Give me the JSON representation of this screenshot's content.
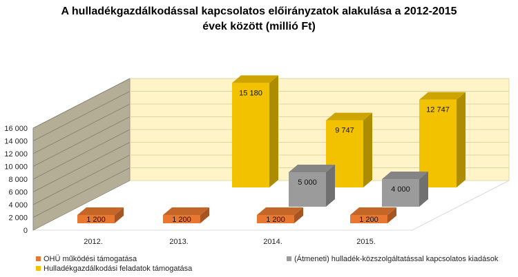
{
  "chart_data": {
    "type": "bar",
    "title": "A hulladékgazdálkodással kapcsolatos előirányzatok alakulása a 2012-2015 évek között (millió Ft)",
    "title_lines": [
      "A hulladékgazdálkodással kapcsolatos előirányzatok alakulása a 2012-2015",
      "évek között (millió Ft)"
    ],
    "categories": [
      "2012.",
      "2013.",
      "2014.",
      "2015."
    ],
    "ylim": [
      0,
      16000
    ],
    "yticks": [
      "0",
      "2 000",
      "4 000",
      "6 000",
      "8 000",
      "10 000",
      "12 000",
      "14 000",
      "16 000"
    ],
    "grid": true,
    "legend_position": "bottom",
    "series": [
      {
        "name": "OHÜ működési támogatása",
        "color": "#E87830",
        "values": [
          1200,
          1200,
          1200,
          1200
        ],
        "labels": [
          "1 200",
          "1 200",
          "1 200",
          "1 200"
        ]
      },
      {
        "name": "(Átmeneti) hulladék-közszolgáltatással kapcsolatos kiadások",
        "color": "#9B9B9B",
        "values": [
          0,
          0,
          5000,
          4000
        ],
        "labels": [
          "",
          "",
          "5 000",
          "4 000"
        ]
      },
      {
        "name": "Hulladékgazdálkodási feladatok támogatása",
        "color": "#F2C200",
        "values": [
          0,
          15180,
          9747,
          12747
        ],
        "labels": [
          "",
          "15 180",
          "9 747",
          "12 747"
        ]
      }
    ]
  }
}
